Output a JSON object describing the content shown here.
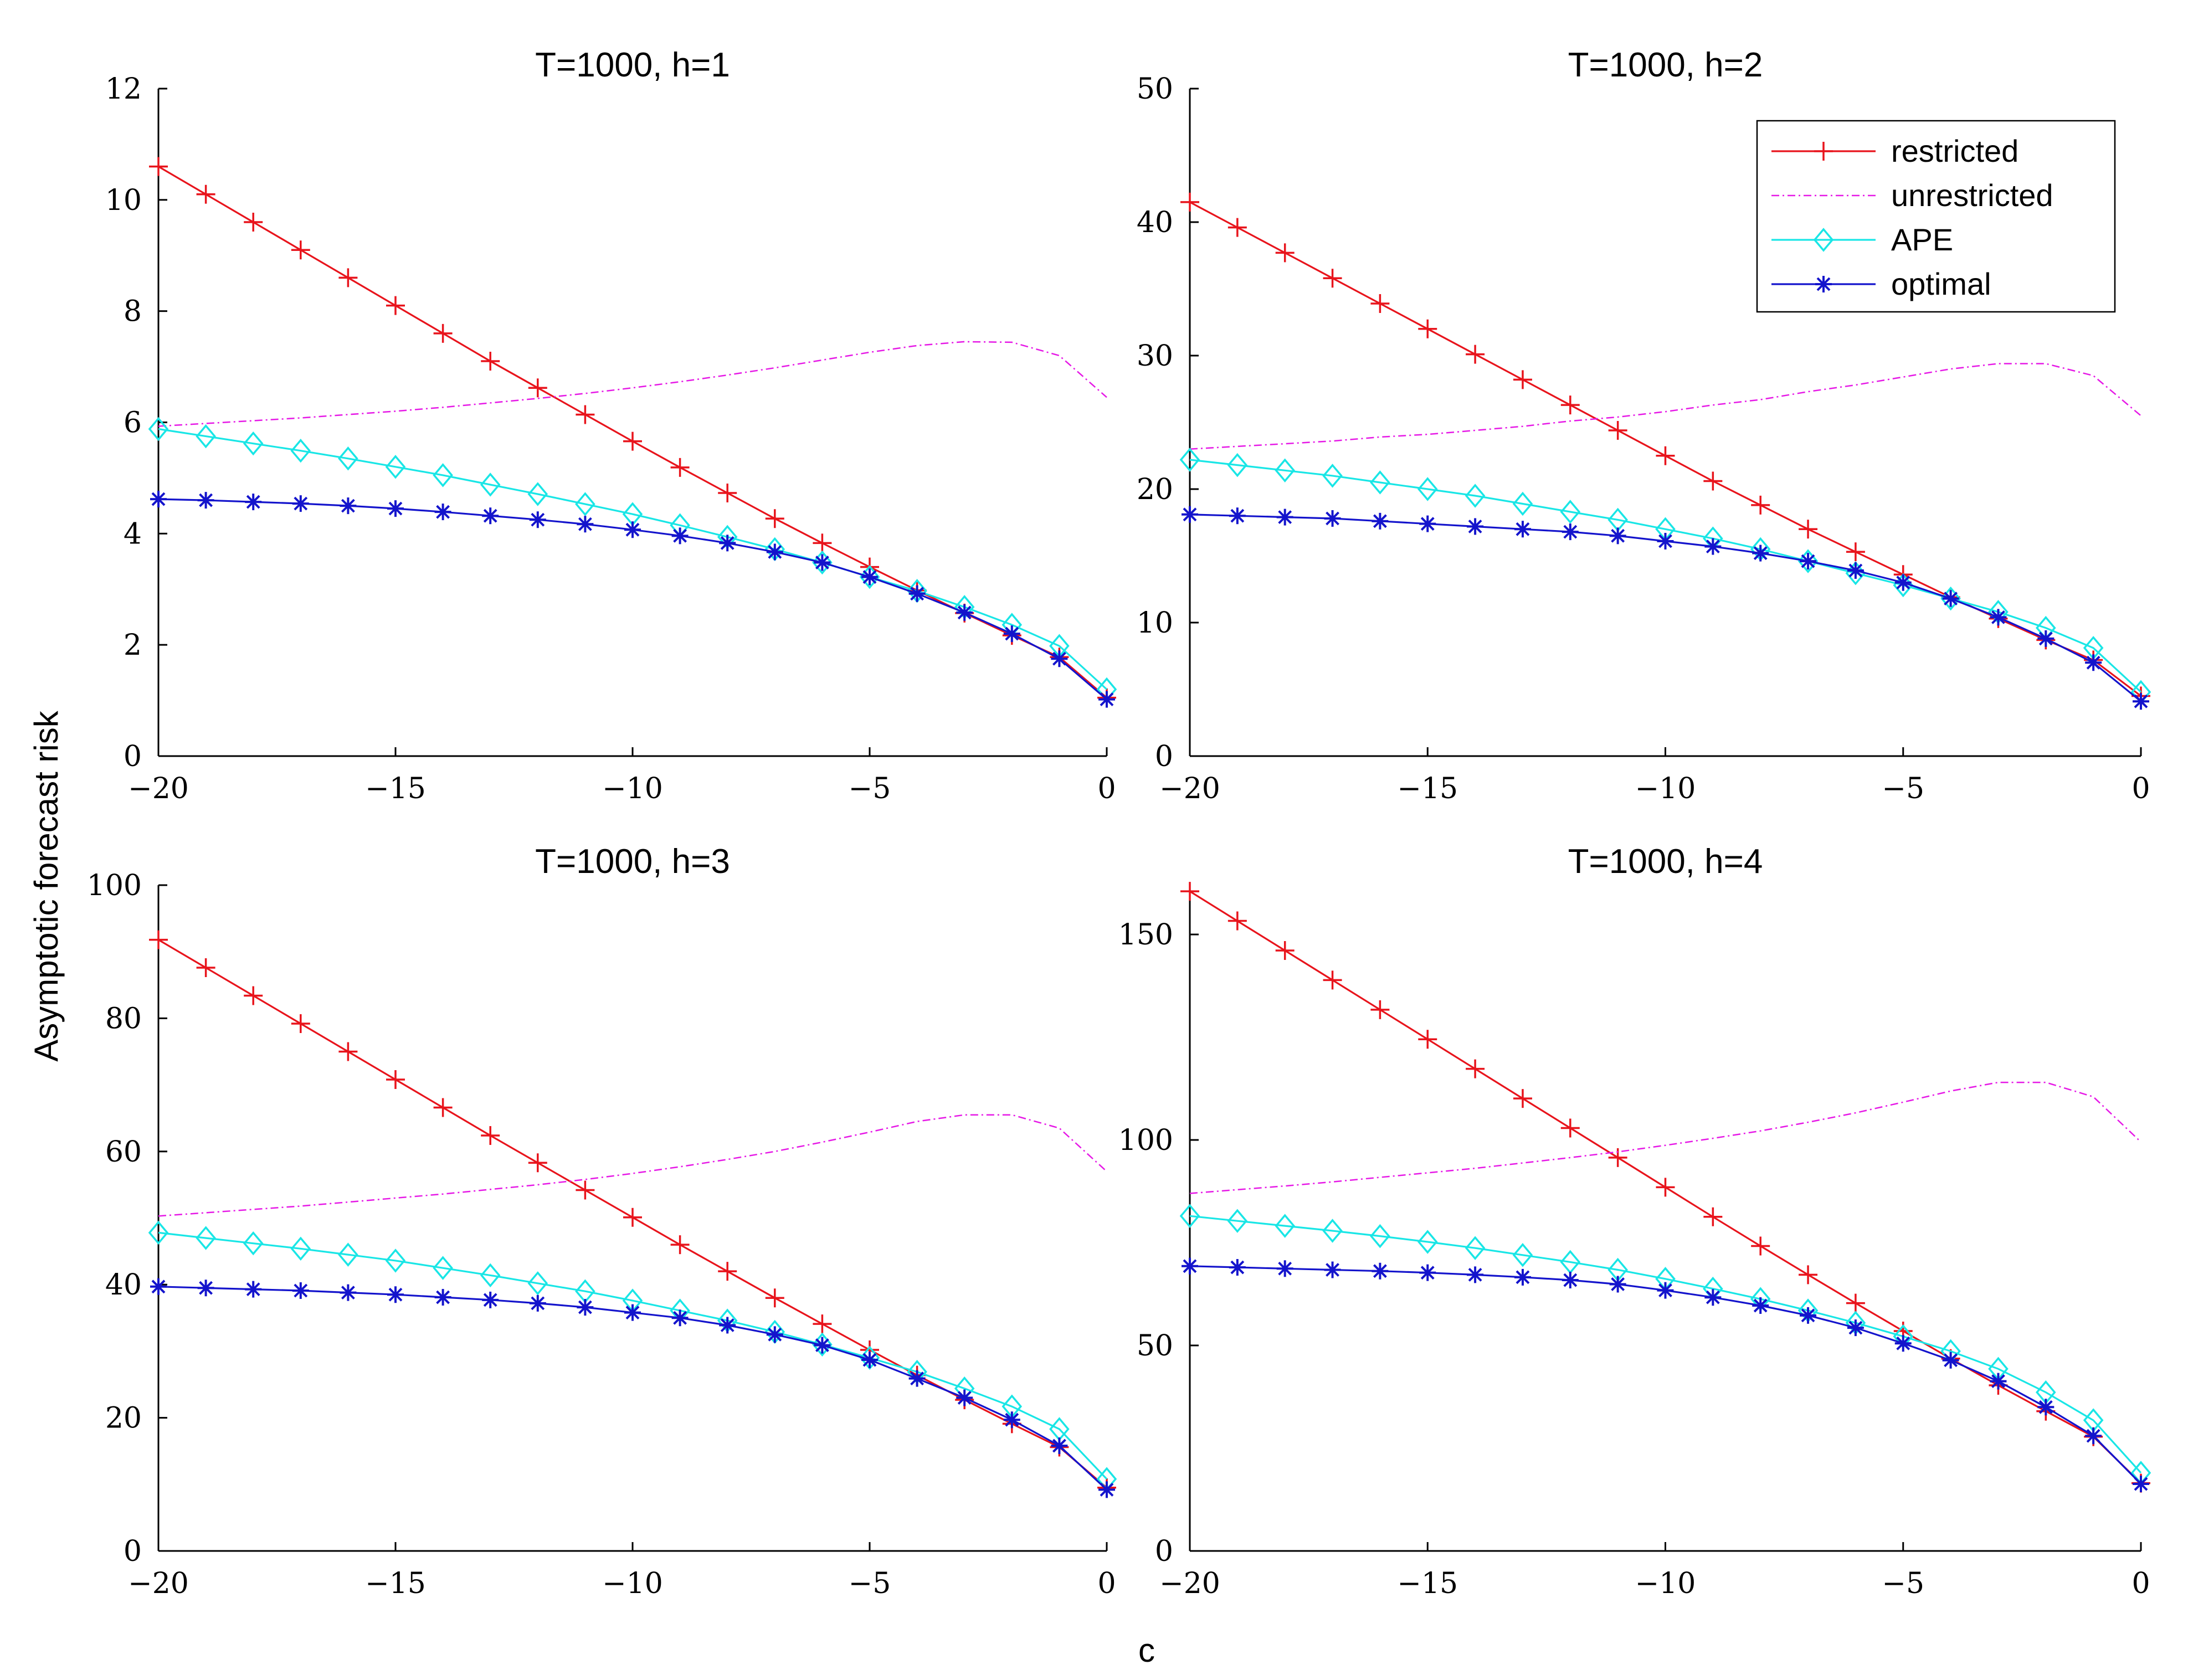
{
  "figure": {
    "ylabel": "Asymptotic forecast risk",
    "xlabel": "c"
  },
  "chart_data": [
    {
      "type": "line",
      "title": "T=1000, h=1",
      "xlim": [
        -20,
        0
      ],
      "ylim": [
        0,
        12
      ],
      "xticks": [
        -20,
        -15,
        -10,
        -5,
        0
      ],
      "yticks": [
        0,
        2,
        4,
        6,
        8,
        10,
        12
      ],
      "xtick_labels": [
        "−20",
        "−15",
        "−10",
        "−5",
        "0"
      ],
      "ytick_labels": [
        "0",
        "2",
        "4",
        "6",
        "8",
        "10",
        "12"
      ],
      "x": [
        -20,
        -19,
        -18,
        -17,
        -16,
        -15,
        -14,
        -13,
        -12,
        -11,
        -10,
        -9,
        -8,
        -7,
        -6,
        -5,
        -4,
        -3,
        -2,
        -1,
        0
      ],
      "series": [
        {
          "name": "restricted",
          "color": "#e8141c",
          "marker": "plus",
          "style": "solid",
          "values": [
            10.6,
            10.1,
            9.6,
            9.1,
            8.6,
            8.1,
            7.6,
            7.1,
            6.62,
            6.14,
            5.66,
            5.19,
            4.73,
            4.27,
            3.83,
            3.4,
            2.98,
            2.57,
            2.17,
            1.78,
            1.05
          ]
        },
        {
          "name": "unrestricted",
          "color": "#e619e6",
          "marker": "none",
          "style": "dashdot",
          "values": [
            5.93,
            5.98,
            6.03,
            6.08,
            6.14,
            6.2,
            6.27,
            6.35,
            6.43,
            6.52,
            6.62,
            6.73,
            6.85,
            6.98,
            7.12,
            7.26,
            7.38,
            7.45,
            7.44,
            7.2,
            6.45
          ]
        },
        {
          "name": "APE",
          "color": "#19e6e6",
          "marker": "diamond",
          "style": "solid",
          "values": [
            5.88,
            5.75,
            5.62,
            5.49,
            5.35,
            5.2,
            5.05,
            4.88,
            4.71,
            4.53,
            4.35,
            4.15,
            3.94,
            3.72,
            3.48,
            3.22,
            2.97,
            2.68,
            2.36,
            1.98,
            1.2
          ]
        },
        {
          "name": "optimal",
          "color": "#1414cc",
          "marker": "star",
          "style": "solid",
          "values": [
            4.62,
            4.6,
            4.57,
            4.54,
            4.5,
            4.45,
            4.39,
            4.32,
            4.25,
            4.17,
            4.07,
            3.96,
            3.83,
            3.67,
            3.48,
            3.22,
            2.92,
            2.58,
            2.2,
            1.75,
            1.02
          ]
        }
      ]
    },
    {
      "type": "line",
      "title": "T=1000, h=2",
      "xlim": [
        -20,
        0
      ],
      "ylim": [
        0,
        50
      ],
      "xticks": [
        -20,
        -15,
        -10,
        -5,
        0
      ],
      "yticks": [
        0,
        10,
        20,
        30,
        40,
        50
      ],
      "xtick_labels": [
        "−20",
        "−15",
        "−10",
        "−5",
        "0"
      ],
      "ytick_labels": [
        "0",
        "10",
        "20",
        "30",
        "40",
        "50"
      ],
      "x": [
        -20,
        -19,
        -18,
        -17,
        -16,
        -15,
        -14,
        -13,
        -12,
        -11,
        -10,
        -9,
        -8,
        -7,
        -6,
        -5,
        -4,
        -3,
        -2,
        -1,
        0
      ],
      "legend": {
        "position": "top-right",
        "entries": [
          "restricted",
          "unrestricted",
          "APE",
          "optimal"
        ]
      },
      "series": [
        {
          "name": "restricted",
          "color": "#e8141c",
          "marker": "plus",
          "style": "solid",
          "values": [
            41.5,
            39.6,
            37.7,
            35.8,
            33.9,
            32,
            30.1,
            28.2,
            26.3,
            24.4,
            22.5,
            20.6,
            18.8,
            17,
            15.3,
            13.6,
            11.9,
            10.3,
            8.7,
            7.2,
            4.5
          ]
        },
        {
          "name": "unrestricted",
          "color": "#e619e6",
          "marker": "none",
          "style": "dashdot",
          "values": [
            23,
            23.2,
            23.4,
            23.6,
            23.9,
            24.1,
            24.4,
            24.7,
            25.1,
            25.4,
            25.8,
            26.3,
            26.7,
            27.3,
            27.8,
            28.4,
            29,
            29.4,
            29.4,
            28.5,
            25.5
          ]
        },
        {
          "name": "APE",
          "color": "#19e6e6",
          "marker": "diamond",
          "style": "solid",
          "values": [
            22.2,
            21.8,
            21.4,
            21,
            20.5,
            20,
            19.5,
            18.9,
            18.3,
            17.7,
            17,
            16.3,
            15.5,
            14.6,
            13.7,
            12.8,
            11.8,
            10.8,
            9.6,
            8.1,
            4.8
          ]
        },
        {
          "name": "optimal",
          "color": "#1414cc",
          "marker": "star",
          "style": "solid",
          "values": [
            18.1,
            18,
            17.9,
            17.8,
            17.6,
            17.4,
            17.2,
            17,
            16.8,
            16.5,
            16.1,
            15.7,
            15.2,
            14.6,
            13.9,
            13,
            11.8,
            10.4,
            8.8,
            7,
            4.1
          ]
        }
      ]
    },
    {
      "type": "line",
      "title": "T=1000, h=3",
      "xlim": [
        -20,
        0
      ],
      "ylim": [
        0,
        100
      ],
      "xticks": [
        -20,
        -15,
        -10,
        -5,
        0
      ],
      "yticks": [
        0,
        20,
        40,
        60,
        80,
        100
      ],
      "xtick_labels": [
        "−20",
        "−15",
        "−10",
        "−5",
        "0"
      ],
      "ytick_labels": [
        "0",
        "20",
        "40",
        "60",
        "80",
        "100"
      ],
      "x": [
        -20,
        -19,
        -18,
        -17,
        -16,
        -15,
        -14,
        -13,
        -12,
        -11,
        -10,
        -9,
        -8,
        -7,
        -6,
        -5,
        -4,
        -3,
        -2,
        -1,
        0
      ],
      "series": [
        {
          "name": "restricted",
          "color": "#e8141c",
          "marker": "plus",
          "style": "solid",
          "values": [
            91.8,
            87.6,
            83.4,
            79.2,
            75,
            70.8,
            66.6,
            62.4,
            58.3,
            54.2,
            50.1,
            46,
            42,
            38,
            34.1,
            30.2,
            26.4,
            22.7,
            19.1,
            15.6,
            9.5
          ]
        },
        {
          "name": "unrestricted",
          "color": "#e619e6",
          "marker": "none",
          "style": "dashdot",
          "values": [
            50.3,
            50.8,
            51.3,
            51.8,
            52.4,
            53,
            53.6,
            54.3,
            55,
            55.8,
            56.7,
            57.7,
            58.8,
            60,
            61.4,
            62.9,
            64.5,
            65.5,
            65.5,
            63.5,
            57
          ]
        },
        {
          "name": "APE",
          "color": "#19e6e6",
          "marker": "diamond",
          "style": "solid",
          "values": [
            47.8,
            47,
            46.2,
            45.4,
            44.5,
            43.6,
            42.5,
            41.4,
            40.2,
            39,
            37.6,
            36.1,
            34.6,
            32.9,
            31,
            29,
            26.9,
            24.4,
            21.7,
            18.3,
            10.8
          ]
        },
        {
          "name": "optimal",
          "color": "#1414cc",
          "marker": "star",
          "style": "solid",
          "values": [
            39.7,
            39.5,
            39.3,
            39.1,
            38.8,
            38.5,
            38.1,
            37.7,
            37.2,
            36.6,
            35.8,
            35,
            33.9,
            32.5,
            30.9,
            28.7,
            25.9,
            23,
            19.7,
            15.8,
            9.2
          ]
        }
      ]
    },
    {
      "type": "line",
      "title": "T=1000, h=4",
      "xlim": [
        -20,
        0
      ],
      "ylim": [
        0,
        162
      ],
      "xticks": [
        -20,
        -15,
        -10,
        -5,
        0
      ],
      "yticks": [
        0,
        50,
        100,
        150
      ],
      "xtick_labels": [
        "−20",
        "−15",
        "−10",
        "−5",
        "0"
      ],
      "ytick_labels": [
        "0",
        "50",
        "100",
        "150"
      ],
      "x": [
        -20,
        -19,
        -18,
        -17,
        -16,
        -15,
        -14,
        -13,
        -12,
        -11,
        -10,
        -9,
        -8,
        -7,
        -6,
        -5,
        -4,
        -3,
        -2,
        -1,
        0
      ],
      "series": [
        {
          "name": "restricted",
          "color": "#e8141c",
          "marker": "plus",
          "style": "solid",
          "values": [
            160.5,
            153.3,
            146.1,
            138.9,
            131.7,
            124.5,
            117.3,
            110.1,
            102.9,
            95.7,
            88.5,
            81.3,
            74.2,
            67.2,
            60.3,
            53.5,
            46.8,
            40.3,
            34,
            27.8,
            16.5
          ]
        },
        {
          "name": "unrestricted",
          "color": "#e619e6",
          "marker": "none",
          "style": "dashdot",
          "values": [
            87,
            87.9,
            88.8,
            89.8,
            90.9,
            92,
            93.1,
            94.4,
            95.7,
            97.1,
            98.7,
            100.4,
            102.2,
            104.3,
            106.6,
            109.2,
            111.9,
            114,
            114,
            110.5,
            99.5
          ]
        },
        {
          "name": "APE",
          "color": "#19e6e6",
          "marker": "diamond",
          "style": "solid",
          "values": [
            81.5,
            80.3,
            79.1,
            77.9,
            76.6,
            75.2,
            73.7,
            72,
            70.3,
            68.4,
            66.2,
            63.8,
            61.3,
            58.5,
            55.5,
            52.2,
            48.6,
            44.3,
            38.6,
            31.8,
            19
          ]
        },
        {
          "name": "optimal",
          "color": "#1414cc",
          "marker": "star",
          "style": "solid",
          "values": [
            69.3,
            69,
            68.7,
            68.4,
            68.1,
            67.7,
            67.2,
            66.6,
            65.9,
            64.9,
            63.4,
            61.7,
            59.7,
            57.3,
            54.3,
            50.5,
            46.4,
            41.3,
            35,
            28,
            16.3
          ]
        }
      ]
    }
  ]
}
